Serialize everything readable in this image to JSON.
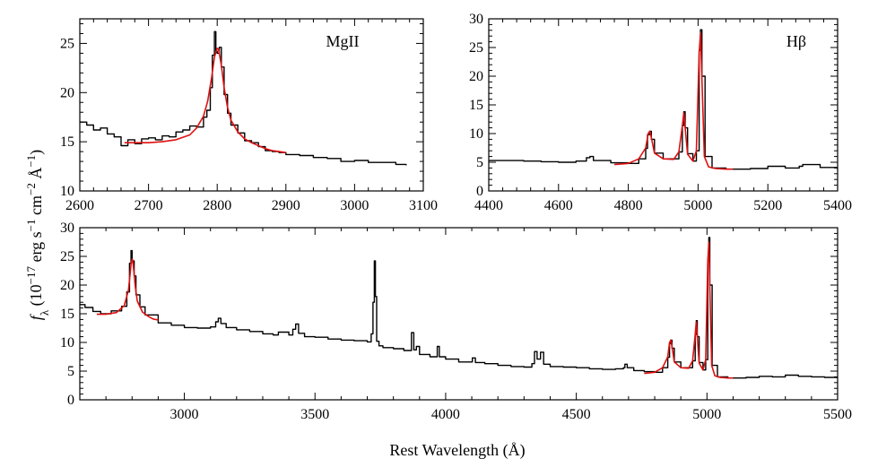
{
  "chart_data": [
    {
      "id": "mgii",
      "type": "line",
      "label": "MgII",
      "xlim": [
        2600,
        3100
      ],
      "ylim": [
        10,
        27.5
      ],
      "xticks": [
        2600,
        2700,
        2800,
        2900,
        3000,
        3100
      ],
      "yticks": [
        10,
        15,
        20,
        25
      ],
      "series": [
        {
          "name": "spectrum",
          "color": "#000000",
          "x": [
            2600,
            2610,
            2620,
            2630,
            2640,
            2650,
            2660,
            2670,
            2680,
            2690,
            2700,
            2710,
            2720,
            2730,
            2740,
            2750,
            2760,
            2770,
            2780,
            2785,
            2790,
            2793,
            2796,
            2798,
            2800,
            2803,
            2806,
            2810,
            2815,
            2820,
            2830,
            2840,
            2850,
            2860,
            2870,
            2880,
            2890,
            2900,
            2920,
            2940,
            2960,
            2980,
            3000,
            3020,
            3040,
            3060,
            3075
          ],
          "y": [
            17.0,
            16.7,
            16.2,
            16.4,
            15.8,
            15.5,
            14.6,
            15.2,
            14.8,
            15.3,
            15.4,
            15.2,
            15.6,
            15.5,
            16.0,
            16.2,
            16.6,
            16.5,
            17.5,
            18.2,
            20.5,
            23.8,
            26.2,
            24.2,
            24.0,
            24.6,
            22.6,
            19.8,
            17.9,
            16.7,
            15.9,
            15.1,
            14.9,
            14.5,
            14.1,
            14.0,
            13.9,
            13.7,
            13.6,
            13.4,
            13.3,
            13.0,
            13.1,
            12.9,
            12.9,
            12.7,
            12.6
          ]
        },
        {
          "name": "fit",
          "color": "#e01010",
          "x": [
            2665,
            2680,
            2700,
            2720,
            2740,
            2760,
            2770,
            2780,
            2786,
            2792,
            2796,
            2800,
            2802,
            2806,
            2810,
            2815,
            2820,
            2830,
            2840,
            2850,
            2860,
            2870,
            2880,
            2890,
            2900
          ],
          "y": [
            14.9,
            14.9,
            14.9,
            15.0,
            15.2,
            15.7,
            16.4,
            17.6,
            19.1,
            21.6,
            23.6,
            24.5,
            24.4,
            22.8,
            20.5,
            18.5,
            17.2,
            16.0,
            15.3,
            14.9,
            14.6,
            14.3,
            14.1,
            14.0,
            13.9
          ]
        }
      ]
    },
    {
      "id": "hbeta",
      "type": "line",
      "label": "Hβ",
      "xlim": [
        4400,
        5400
      ],
      "ylim": [
        0,
        30
      ],
      "xticks": [
        4400,
        4600,
        4800,
        5000,
        5200,
        5400
      ],
      "yticks": [
        0,
        5,
        10,
        15,
        20,
        25,
        30
      ],
      "series": [
        {
          "name": "spectrum",
          "color": "#000000",
          "x": [
            4400,
            4450,
            4500,
            4550,
            4600,
            4650,
            4680,
            4690,
            4700,
            4750,
            4800,
            4830,
            4850,
            4855,
            4861,
            4866,
            4875,
            4900,
            4930,
            4945,
            4955,
            4959,
            4963,
            4970,
            4985,
            4995,
            5003,
            5007,
            5011,
            5020,
            5040,
            5080,
            5150,
            5200,
            5250,
            5290,
            5300,
            5350,
            5400
          ],
          "y": [
            5.3,
            5.3,
            5.2,
            5.1,
            5.0,
            5.2,
            5.8,
            6.0,
            5.3,
            4.9,
            4.8,
            5.6,
            7.4,
            9.8,
            10.4,
            9.0,
            6.6,
            5.6,
            5.6,
            6.8,
            11.4,
            13.8,
            11.0,
            6.5,
            5.2,
            7.0,
            24.5,
            28.1,
            20.0,
            6.0,
            4.0,
            3.8,
            3.9,
            4.3,
            4.0,
            4.3,
            4.6,
            4.1,
            3.7
          ]
        },
        {
          "name": "fit",
          "color": "#e01010",
          "x": [
            4760,
            4800,
            4830,
            4850,
            4857,
            4862,
            4867,
            4875,
            4900,
            4930,
            4945,
            4955,
            4959,
            4963,
            4970,
            4985,
            4995,
            5003,
            5007,
            5011,
            5018,
            5030,
            5050,
            5080,
            5100
          ],
          "y": [
            4.6,
            4.8,
            5.6,
            7.5,
            10.0,
            10.4,
            9.0,
            6.6,
            5.6,
            5.5,
            6.8,
            11.4,
            13.6,
            11.0,
            6.4,
            5.2,
            7.0,
            24.0,
            27.5,
            19.5,
            6.0,
            4.2,
            3.9,
            3.8,
            3.8
          ]
        }
      ]
    },
    {
      "id": "full",
      "type": "line",
      "label": "",
      "xlim": [
        2600,
        5500
      ],
      "ylim": [
        0,
        30
      ],
      "xticks": [
        3000,
        3500,
        4000,
        4500,
        5000,
        5500
      ],
      "yticks": [
        0,
        5,
        10,
        15,
        20,
        25,
        30
      ],
      "xlabel": "Rest Wavelength (Å)",
      "series": [
        {
          "name": "spectrum",
          "color": "#000000",
          "x": [
            2600,
            2620,
            2650,
            2680,
            2720,
            2760,
            2780,
            2790,
            2796,
            2800,
            2803,
            2808,
            2815,
            2830,
            2850,
            2900,
            2950,
            3000,
            3050,
            3100,
            3120,
            3130,
            3140,
            3160,
            3200,
            3250,
            3300,
            3340,
            3360,
            3400,
            3415,
            3426,
            3437,
            3460,
            3500,
            3550,
            3600,
            3650,
            3700,
            3715,
            3722,
            3727,
            3731,
            3736,
            3745,
            3760,
            3800,
            3840,
            3860,
            3869,
            3878,
            3888,
            3900,
            3940,
            3960,
            3968,
            3976,
            4000,
            4050,
            4090,
            4102,
            4114,
            4150,
            4200,
            4250,
            4300,
            4330,
            4340,
            4350,
            4363,
            4375,
            4400,
            4450,
            4500,
            4550,
            4600,
            4650,
            4680,
            4686,
            4695,
            4720,
            4760,
            4800,
            4830,
            4850,
            4857,
            4861,
            4866,
            4875,
            4900,
            4930,
            4945,
            4955,
            4959,
            4963,
            4970,
            4985,
            4995,
            5003,
            5007,
            5011,
            5020,
            5040,
            5080,
            5150,
            5200,
            5250,
            5300,
            5350,
            5400,
            5450,
            5500
          ],
          "y": [
            16.6,
            16.1,
            15.4,
            15.0,
            15.5,
            16.3,
            18.8,
            23.8,
            26.0,
            24.0,
            24.2,
            21.6,
            18.3,
            16.2,
            14.8,
            13.4,
            13.0,
            12.6,
            12.5,
            12.7,
            13.6,
            14.2,
            13.3,
            12.6,
            12.2,
            11.9,
            11.5,
            11.3,
            11.8,
            11.3,
            12.3,
            13.2,
            11.6,
            11.0,
            10.9,
            10.6,
            10.4,
            10.3,
            10.1,
            11.5,
            17.0,
            24.2,
            18.0,
            10.2,
            9.4,
            9.1,
            8.9,
            8.6,
            8.6,
            11.7,
            8.7,
            9.3,
            7.9,
            7.5,
            7.5,
            9.3,
            7.5,
            7.1,
            6.6,
            6.6,
            7.3,
            6.5,
            6.3,
            6.0,
            5.8,
            5.7,
            6.3,
            8.4,
            7.1,
            8.3,
            6.2,
            5.8,
            5.7,
            5.6,
            5.4,
            5.3,
            5.4,
            5.6,
            6.2,
            5.6,
            5.1,
            4.9,
            4.8,
            5.6,
            7.4,
            9.8,
            10.4,
            9.0,
            6.6,
            5.6,
            5.6,
            6.8,
            11.4,
            13.8,
            11.0,
            6.5,
            5.2,
            7.0,
            24.5,
            28.3,
            20.0,
            6.0,
            4.0,
            3.8,
            3.9,
            4.1,
            4.0,
            4.3,
            4.1,
            4.0,
            3.9,
            3.7
          ]
        },
        {
          "name": "fit",
          "color": "#e01010",
          "x": [
            2665,
            2700,
            2740,
            2770,
            2786,
            2792,
            2796,
            2800,
            2802,
            2806,
            2812,
            2820,
            2840,
            2860,
            2880,
            2900,
            4760,
            4800,
            4830,
            4850,
            4857,
            4862,
            4867,
            4875,
            4900,
            4930,
            4945,
            4955,
            4959,
            4963,
            4970,
            4985,
            4995,
            5003,
            5007,
            5011,
            5018,
            5030,
            5050,
            5080,
            5100
          ],
          "y": [
            14.9,
            14.9,
            15.2,
            16.4,
            19.1,
            21.6,
            23.6,
            24.5,
            24.4,
            22.8,
            19.8,
            17.2,
            15.3,
            14.6,
            14.1,
            13.9,
            4.6,
            4.8,
            5.6,
            7.5,
            10.0,
            10.4,
            9.0,
            6.6,
            5.6,
            5.5,
            6.8,
            11.4,
            13.6,
            11.0,
            6.4,
            5.2,
            7.0,
            24.0,
            27.5,
            19.5,
            6.0,
            4.2,
            3.9,
            3.8,
            3.8
          ]
        }
      ]
    }
  ],
  "shared": {
    "ylabel_fx": "f",
    "ylabel_sub": "λ",
    "ylabel_rest": " (10",
    "ylabel_exp": "−17",
    "ylabel_units": " erg s",
    "ylabel_exp2": "−1",
    "ylabel_cm": " cm",
    "ylabel_exp3": "−2",
    "ylabel_A": " Å",
    "ylabel_exp4": "−1",
    "ylabel_close": ")"
  }
}
